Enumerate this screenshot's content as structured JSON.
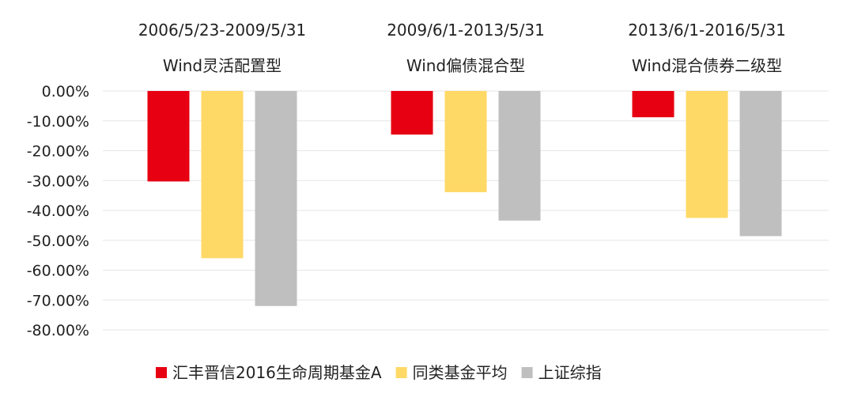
{
  "chart_data": {
    "type": "bar",
    "groups": [
      {
        "period": "2006/5/23-2009/5/31",
        "category": "Wind灵活配置型",
        "values": [
          -30.3,
          -56.0,
          -72.0
        ]
      },
      {
        "period": "2009/6/1-2013/5/31",
        "category": "Wind偏债混合型",
        "values": [
          -14.6,
          -33.9,
          -43.4
        ]
      },
      {
        "period": "2013/6/1-2016/5/31",
        "category": "Wind混合债券二级型",
        "values": [
          -8.8,
          -42.5,
          -48.6
        ]
      }
    ],
    "series": [
      {
        "name": "汇丰晋信2016生命周期基金A",
        "color": "#e60012"
      },
      {
        "name": "同类基金平均",
        "color": "#ffd966"
      },
      {
        "name": "上证综指",
        "color": "#bfbfbf"
      }
    ],
    "y_ticks": [
      "0.00%",
      "-10.00%",
      "-20.00%",
      "-30.00%",
      "-40.00%",
      "-50.00%",
      "-60.00%",
      "-70.00%",
      "-80.00%"
    ],
    "ylim": [
      -80,
      0
    ],
    "grid": true,
    "legend_position": "bottom",
    "gridline_color": "#e6e6e6"
  }
}
